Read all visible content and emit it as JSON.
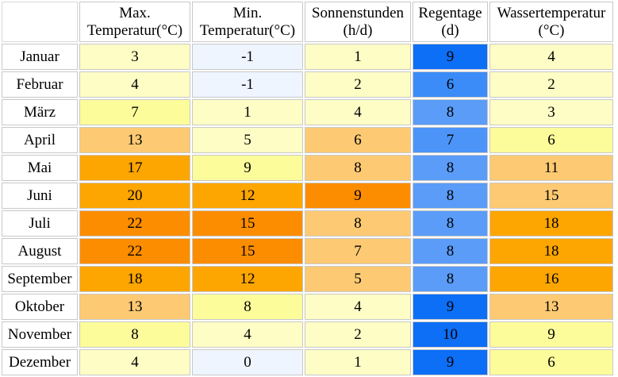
{
  "table": {
    "headers": [
      {
        "line1": "Max.",
        "line2": "Temperatur(°C)"
      },
      {
        "line1": "Min.",
        "line2": "Temperatur(°C)"
      },
      {
        "line1": "Sonnenstunden",
        "line2": "(h/d)"
      },
      {
        "line1": "Regentage",
        "line2": "(d)"
      },
      {
        "line1": "Wassertemperatur",
        "line2": "(°C)"
      }
    ],
    "rows": [
      {
        "month": "Januar",
        "values": [
          "3",
          "-1",
          "1",
          "9",
          "4"
        ]
      },
      {
        "month": "Februar",
        "values": [
          "4",
          "-1",
          "2",
          "6",
          "2"
        ]
      },
      {
        "month": "März",
        "values": [
          "7",
          "1",
          "4",
          "8",
          "3"
        ]
      },
      {
        "month": "April",
        "values": [
          "13",
          "5",
          "6",
          "7",
          "6"
        ]
      },
      {
        "month": "Mai",
        "values": [
          "17",
          "9",
          "8",
          "8",
          "11"
        ]
      },
      {
        "month": "Juni",
        "values": [
          "20",
          "12",
          "9",
          "8",
          "15"
        ]
      },
      {
        "month": "Juli",
        "values": [
          "22",
          "15",
          "8",
          "8",
          "18"
        ]
      },
      {
        "month": "August",
        "values": [
          "22",
          "15",
          "7",
          "8",
          "18"
        ]
      },
      {
        "month": "September",
        "values": [
          "18",
          "12",
          "5",
          "8",
          "16"
        ]
      },
      {
        "month": "Oktober",
        "values": [
          "13",
          "8",
          "4",
          "9",
          "13"
        ]
      },
      {
        "month": "November",
        "values": [
          "8",
          "4",
          "2",
          "10",
          "9"
        ]
      },
      {
        "month": "Dezember",
        "values": [
          "4",
          "0",
          "1",
          "9",
          "6"
        ]
      }
    ],
    "cell_colors": [
      [
        "#fdfdc5",
        "#eef5ff",
        "#fdfdc5",
        "#0d6ef6",
        "#fdfdc5"
      ],
      [
        "#fdfdc5",
        "#eef5ff",
        "#fdfdc5",
        "#3b8cf8",
        "#fdfdc5"
      ],
      [
        "#fcfc9b",
        "#fdfdc5",
        "#fdfdc5",
        "#5a9cf8",
        "#fdfdc5"
      ],
      [
        "#fdca73",
        "#fdfdc5",
        "#fdca73",
        "#4c94f8",
        "#fcfc9b"
      ],
      [
        "#fda500",
        "#fcfc9b",
        "#fdca73",
        "#5a9cf8",
        "#fdca73"
      ],
      [
        "#fda500",
        "#fda500",
        "#fd8d00",
        "#5a9cf8",
        "#fdca73"
      ],
      [
        "#fd8d00",
        "#fd8d00",
        "#fdca73",
        "#5a9cf8",
        "#fda500"
      ],
      [
        "#fd8d00",
        "#fd8d00",
        "#fdca73",
        "#5a9cf8",
        "#fda500"
      ],
      [
        "#fda500",
        "#fda500",
        "#fdca73",
        "#5a9cf8",
        "#fda500"
      ],
      [
        "#fdca73",
        "#fcfc9b",
        "#fdfdc5",
        "#0d6ef6",
        "#fdca73"
      ],
      [
        "#fcfc9b",
        "#fdfdc5",
        "#fdfdc5",
        "#0d6ef6",
        "#fcfc9b"
      ],
      [
        "#fdfdc5",
        "#eef5ff",
        "#fdfdc5",
        "#0d6ef6",
        "#fcfc9b"
      ]
    ]
  }
}
